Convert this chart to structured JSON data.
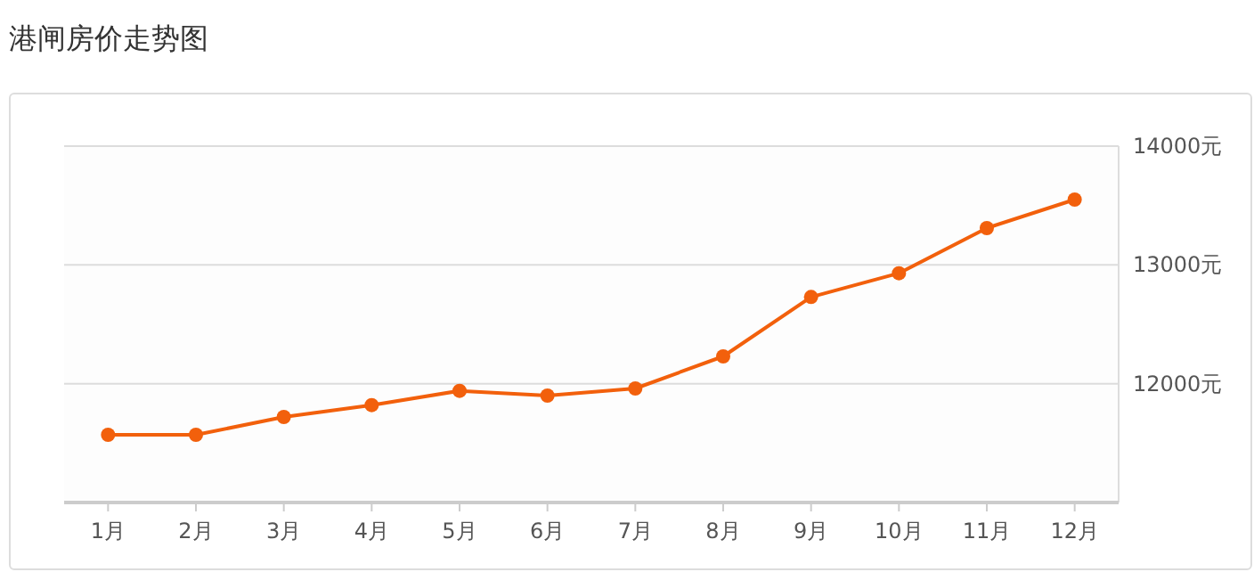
{
  "chart_data": {
    "type": "line",
    "title": "港闸房价走势图",
    "categories": [
      "1月",
      "2月",
      "3月",
      "4月",
      "5月",
      "6月",
      "7月",
      "8月",
      "9月",
      "10月",
      "11月",
      "12月"
    ],
    "series": [
      {
        "color": "#f2600c",
        "values": [
          11570,
          11570,
          11720,
          11820,
          11940,
          11900,
          11960,
          12230,
          12730,
          12930,
          13310,
          13550
        ]
      }
    ],
    "ylim": [
      11000,
      14000
    ],
    "yticks": [
      {
        "value": 12000,
        "label": "12000元"
      },
      {
        "value": 13000,
        "label": "13000元"
      },
      {
        "value": 14000,
        "label": "14000元"
      }
    ],
    "grid": "y",
    "marker": "circle",
    "line_style": "solid"
  }
}
